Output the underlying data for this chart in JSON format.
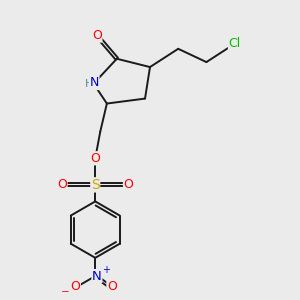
{
  "bg_color": "#ebebeb",
  "bond_color": "#1a1a1a",
  "atom_colors": {
    "O": "#ff0000",
    "N": "#0000cc",
    "S": "#ccaa00",
    "Cl": "#00bb00",
    "H": "#555555"
  },
  "line_width": 1.4,
  "font_size": 8.5,
  "fig_w": 3.0,
  "fig_h": 3.0,
  "dpi": 100
}
